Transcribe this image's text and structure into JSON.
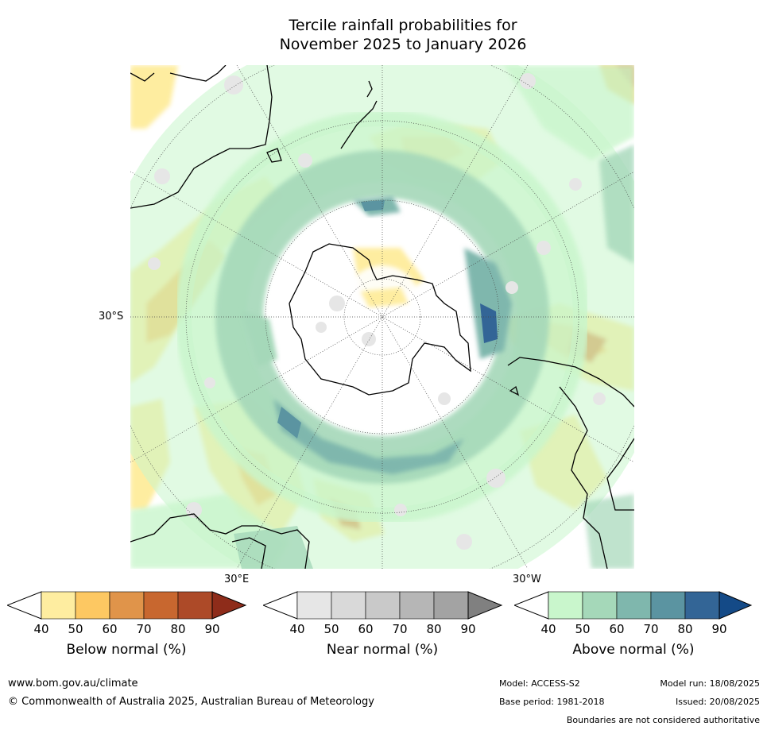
{
  "title_line1": "Tercile rainfall probabilities for",
  "title_line2": "November 2025 to January 2026",
  "map": {
    "lat_label": "30°S",
    "lon_labels": {
      "east": "30°E",
      "west": "30°W"
    },
    "colors": {
      "below": [
        "#ffffff",
        "#feeda0",
        "#fdc862",
        "#e0944a",
        "#c8672f",
        "#ad4a28",
        "#8e2c1a"
      ],
      "near": [
        "#ffffff",
        "#e6e6e6",
        "#d9d9d9",
        "#c9c9c9",
        "#b6b6b6",
        "#a3a3a3",
        "#808080"
      ],
      "above": [
        "#ffffff",
        "#c9f6cc",
        "#a5d8b9",
        "#7fb7ad",
        "#5b94a1",
        "#336596",
        "#144a87"
      ]
    }
  },
  "colorbars": [
    {
      "label": "Below normal (%)",
      "ticks": [
        "40",
        "50",
        "60",
        "70",
        "80",
        "90"
      ]
    },
    {
      "label": "Near normal (%)",
      "ticks": [
        "40",
        "50",
        "60",
        "70",
        "80",
        "90"
      ]
    },
    {
      "label": "Above normal (%)",
      "ticks": [
        "40",
        "50",
        "60",
        "70",
        "80",
        "90"
      ]
    }
  ],
  "footer": {
    "url": "www.bom.gov.au/climate",
    "copyright": "© Commonwealth of Australia 2025, Australian Bureau of Meteorology",
    "model": "Model: ACCESS-S2",
    "base_period": "Base period: 1981-2018",
    "model_run": "Model run: 18/08/2025",
    "issued": "Issued: 20/08/2025",
    "boundaries_note": "Boundaries are not considered authoritative"
  }
}
